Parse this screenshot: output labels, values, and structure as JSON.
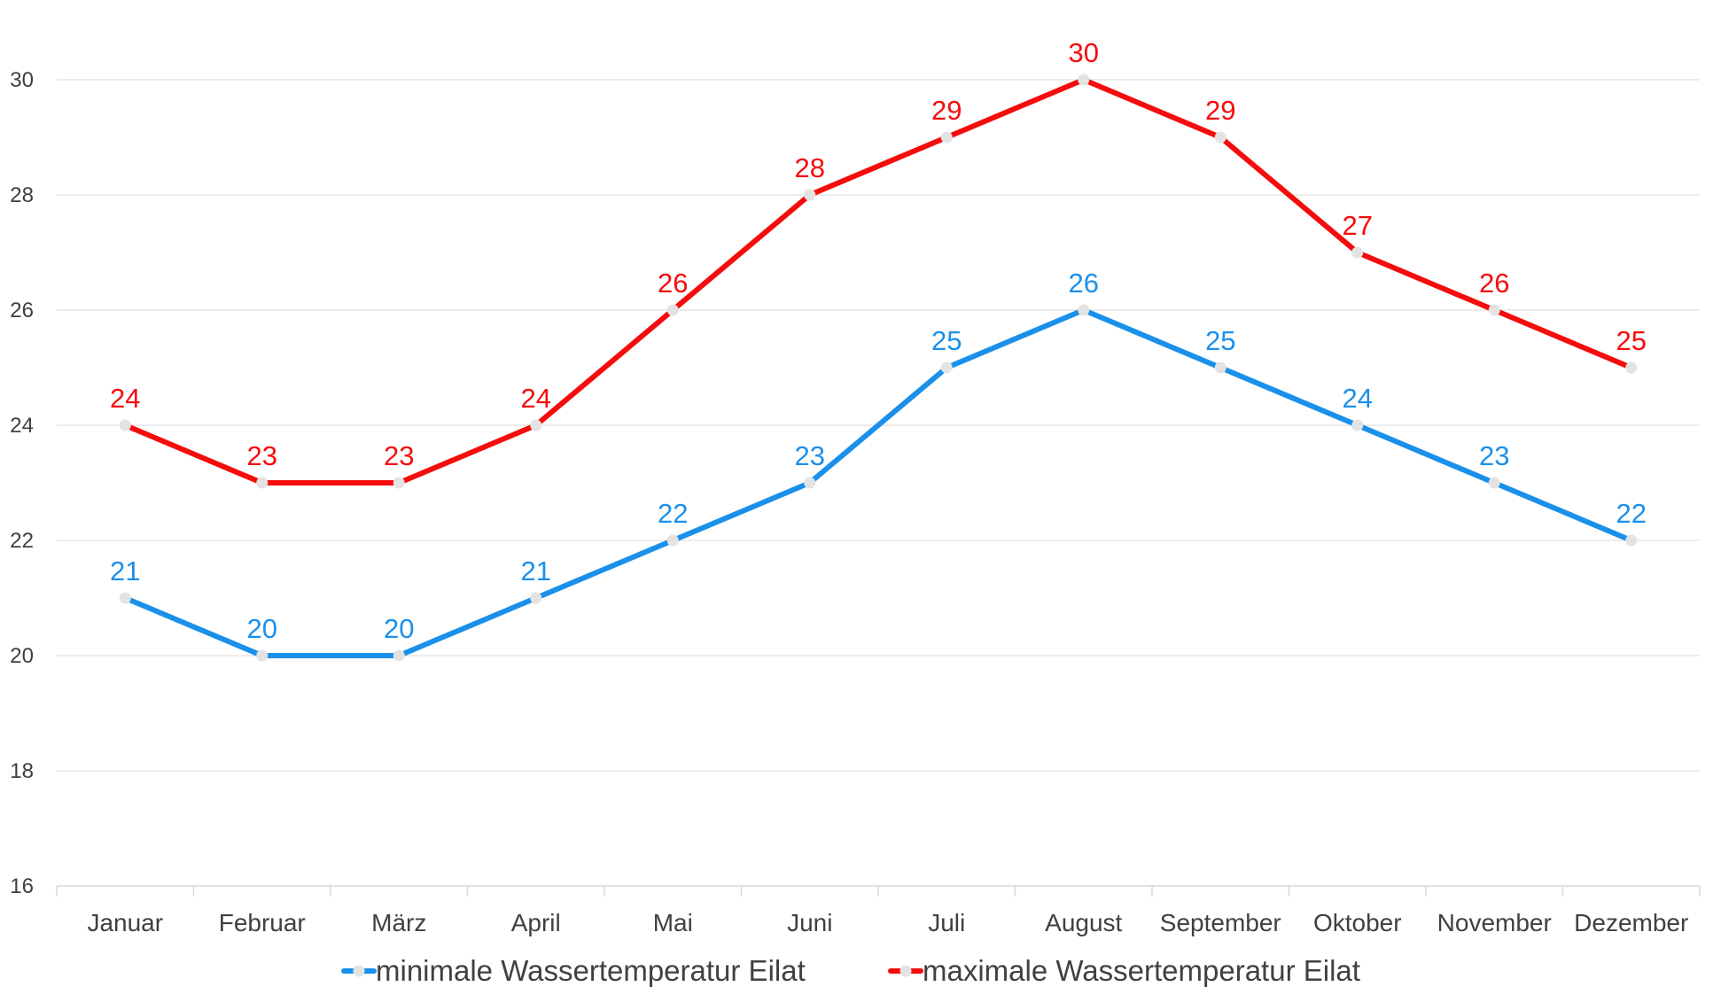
{
  "chart_data": {
    "type": "line",
    "title": "",
    "xlabel": "",
    "ylabel": "",
    "categories": [
      "Januar",
      "Februar",
      "März",
      "April",
      "Mai",
      "Juni",
      "Juli",
      "August",
      "September",
      "Oktober",
      "November",
      "Dezember"
    ],
    "ylim": [
      16,
      30
    ],
    "yticks": [
      16,
      18,
      20,
      22,
      24,
      26,
      28,
      30
    ],
    "grid": true,
    "legend_position": "bottom",
    "data_labels": true,
    "marker_color": "#e3e3e3",
    "series": [
      {
        "name": "minimale Wassertemperatur Eilat",
        "color": "#1b90ea",
        "values": [
          21,
          20,
          20,
          21,
          22,
          23,
          25,
          26,
          25,
          24,
          23,
          22
        ]
      },
      {
        "name": "maximale Wassertemperatur Eilat",
        "color": "#f50c0c",
        "values": [
          24,
          23,
          23,
          24,
          26,
          28,
          29,
          30,
          29,
          27,
          26,
          25
        ]
      }
    ]
  }
}
